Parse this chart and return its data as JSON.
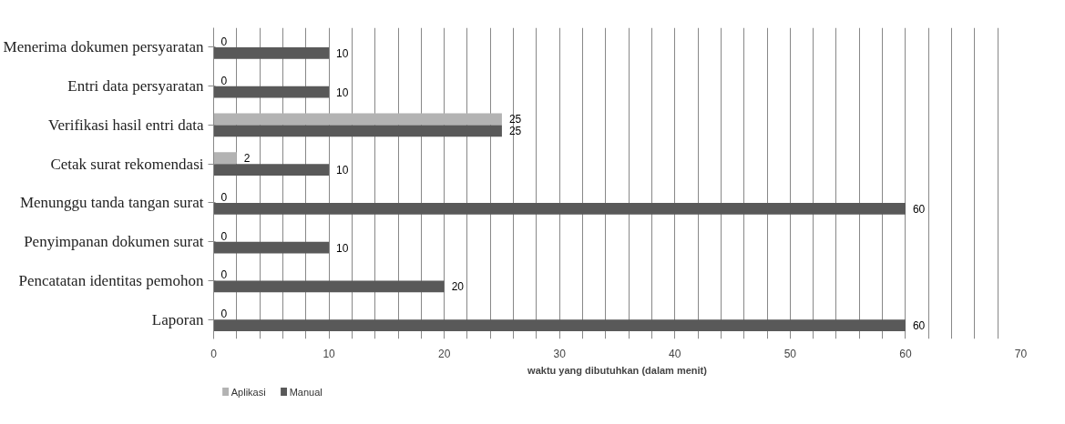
{
  "chart_data": {
    "type": "bar",
    "orientation": "horizontal",
    "xlabel": "waktu yang dibutuhkan (dalam menit)",
    "categories": [
      "Menerima dokumen persyaratan",
      "Entri data persyaratan",
      "Verifikasi hasil entri data",
      "Cetak surat rekomendasi",
      "Menunggu tanda tangan surat",
      "Penyimpanan dokumen surat",
      "Pencatatan identitas pemohon",
      "Laporan"
    ],
    "series": [
      {
        "name": "Aplikasi",
        "color": "#b3b3b3",
        "values": [
          0,
          0,
          25,
          2,
          0,
          0,
          0,
          0
        ]
      },
      {
        "name": "Manual",
        "color": "#595959",
        "values": [
          10,
          10,
          25,
          10,
          60,
          10,
          20,
          60
        ]
      }
    ],
    "xlim": [
      0,
      70
    ],
    "xticks": [
      0,
      {
        "value": 2,
        "label": null
      },
      {
        "value": 4,
        "label": null
      },
      {
        "value": 6,
        "label": null
      },
      {
        "value": 8,
        "label": null
      },
      10,
      {
        "value": 12,
        "label": null
      },
      {
        "value": 14,
        "label": null
      },
      {
        "value": 16,
        "label": null
      },
      {
        "value": 18,
        "label": null
      },
      20,
      {
        "value": 22,
        "label": null
      },
      {
        "value": 24,
        "label": null
      },
      {
        "value": 26,
        "label": null
      },
      {
        "value": 28,
        "label": null
      },
      30,
      {
        "value": 32,
        "label": null
      },
      {
        "value": 34,
        "label": null
      },
      {
        "value": 36,
        "label": null
      },
      {
        "value": 38,
        "label": null
      },
      40,
      {
        "value": 42,
        "label": null
      },
      {
        "value": 44,
        "label": null
      },
      {
        "value": 46,
        "label": null
      },
      {
        "value": 48,
        "label": null
      },
      50,
      {
        "value": 52,
        "label": null
      },
      {
        "value": 54,
        "label": null
      },
      {
        "value": 56,
        "label": null
      },
      {
        "value": 58,
        "label": null
      },
      60,
      {
        "value": 62,
        "label": null
      },
      {
        "value": 64,
        "label": null
      },
      {
        "value": 66,
        "label": null
      },
      {
        "value": 68,
        "label": null
      },
      70
    ],
    "grid": "x",
    "legend": "bottom left",
    "data_labels": true
  }
}
